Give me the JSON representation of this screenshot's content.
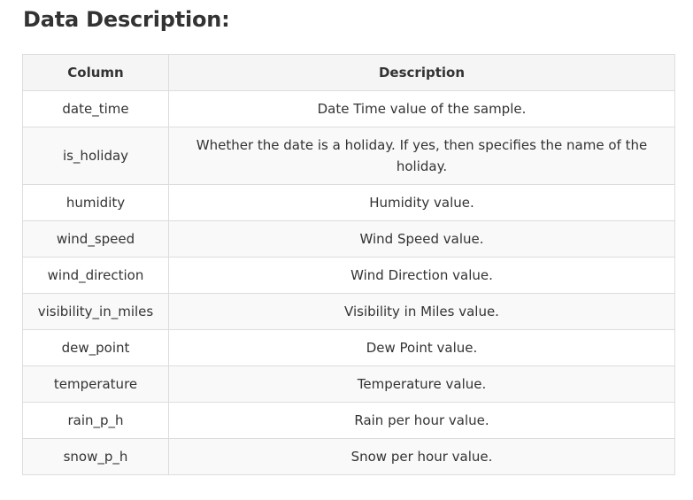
{
  "heading": "Data Description:",
  "table": {
    "headers": [
      "Column",
      "Description"
    ],
    "rows": [
      {
        "column": "date_time",
        "description": "Date Time value of the sample."
      },
      {
        "column": "is_holiday",
        "description": "Whether the date is a holiday. If yes, then specifies the name of the holiday."
      },
      {
        "column": "humidity",
        "description": "Humidity value."
      },
      {
        "column": "wind_speed",
        "description": "Wind Speed value."
      },
      {
        "column": "wind_direction",
        "description": "Wind Direction value."
      },
      {
        "column": "visibility_in_miles",
        "description": "Visibility in Miles value."
      },
      {
        "column": "dew_point",
        "description": "Dew Point value."
      },
      {
        "column": "temperature",
        "description": "Temperature value."
      },
      {
        "column": "rain_p_h",
        "description": "Rain per hour value."
      },
      {
        "column": "snow_p_h",
        "description": "Snow per hour value."
      }
    ]
  }
}
